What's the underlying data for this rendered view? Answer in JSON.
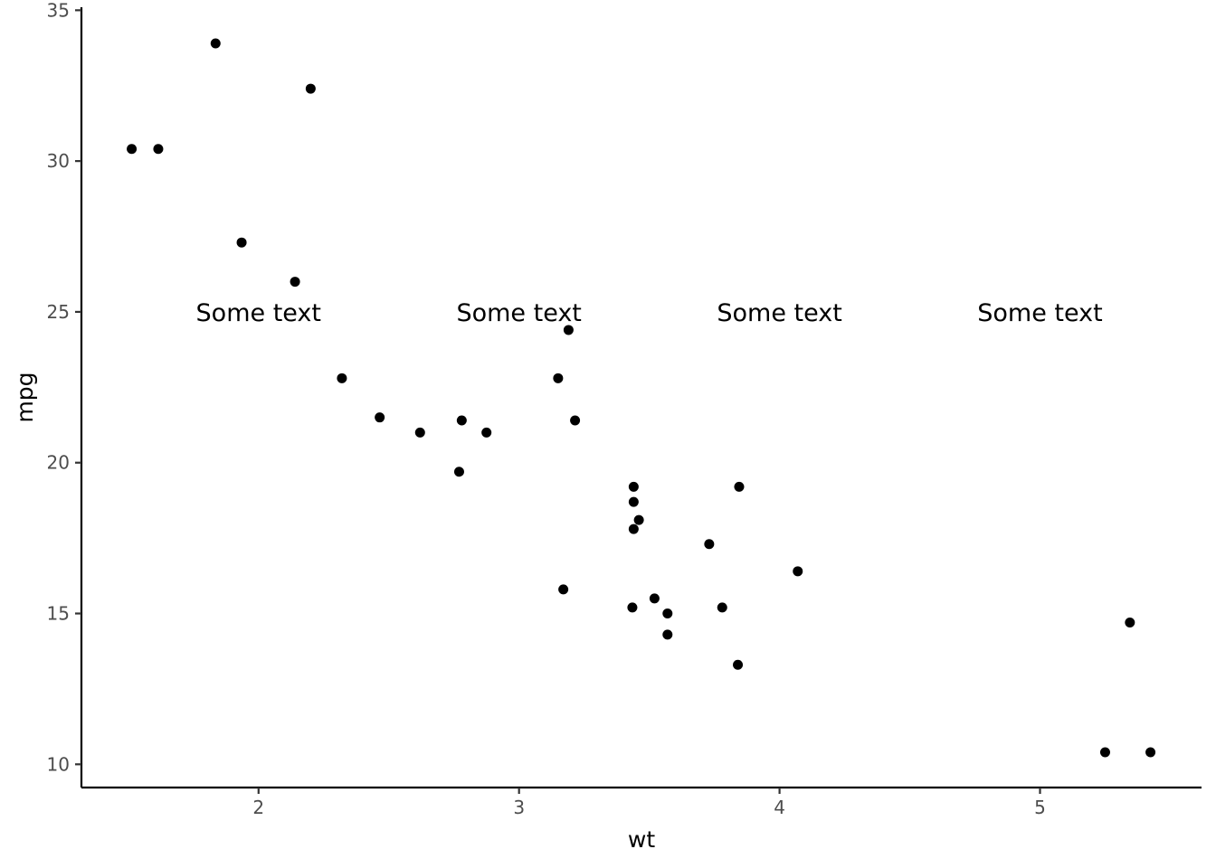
{
  "chart_data": {
    "type": "scatter",
    "xlabel": "wt",
    "ylabel": "mpg",
    "xlim": [
      1.32,
      5.62
    ],
    "ylim": [
      9.23,
      35.1
    ],
    "x_ticks": [
      2,
      3,
      4,
      5
    ],
    "y_ticks": [
      10,
      15,
      20,
      25,
      30,
      35
    ],
    "grid": false,
    "colors": {
      "point": "#000000",
      "axis": "#000000",
      "tick_label": "#4d4d4d"
    },
    "points": [
      {
        "x": 2.62,
        "y": 21.0
      },
      {
        "x": 2.875,
        "y": 21.0
      },
      {
        "x": 2.32,
        "y": 22.8
      },
      {
        "x": 3.215,
        "y": 21.4
      },
      {
        "x": 3.44,
        "y": 18.7
      },
      {
        "x": 3.46,
        "y": 18.1
      },
      {
        "x": 3.57,
        "y": 14.3
      },
      {
        "x": 3.19,
        "y": 24.4
      },
      {
        "x": 3.15,
        "y": 22.8
      },
      {
        "x": 3.44,
        "y": 19.2
      },
      {
        "x": 3.44,
        "y": 17.8
      },
      {
        "x": 4.07,
        "y": 16.4
      },
      {
        "x": 3.73,
        "y": 17.3
      },
      {
        "x": 3.78,
        "y": 15.2
      },
      {
        "x": 5.25,
        "y": 10.4
      },
      {
        "x": 5.424,
        "y": 10.4
      },
      {
        "x": 5.345,
        "y": 14.7
      },
      {
        "x": 2.2,
        "y": 32.4
      },
      {
        "x": 1.615,
        "y": 30.4
      },
      {
        "x": 1.835,
        "y": 33.9
      },
      {
        "x": 2.465,
        "y": 21.5
      },
      {
        "x": 3.52,
        "y": 15.5
      },
      {
        "x": 3.435,
        "y": 15.2
      },
      {
        "x": 3.84,
        "y": 13.3
      },
      {
        "x": 3.845,
        "y": 19.2
      },
      {
        "x": 1.935,
        "y": 27.3
      },
      {
        "x": 2.14,
        "y": 26.0
      },
      {
        "x": 1.513,
        "y": 30.4
      },
      {
        "x": 3.17,
        "y": 15.8
      },
      {
        "x": 2.77,
        "y": 19.7
      },
      {
        "x": 3.57,
        "y": 15.0
      },
      {
        "x": 2.78,
        "y": 21.4
      }
    ],
    "annotations": [
      {
        "x": 2,
        "y": 25,
        "text": "Some text"
      },
      {
        "x": 3,
        "y": 25,
        "text": "Some text"
      },
      {
        "x": 4,
        "y": 25,
        "text": "Some text"
      },
      {
        "x": 5,
        "y": 25,
        "text": "Some text"
      }
    ]
  }
}
